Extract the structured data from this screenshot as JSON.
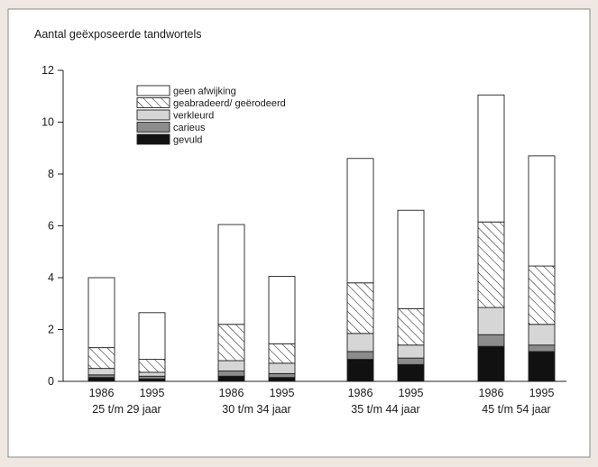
{
  "chart_data": {
    "type": "bar",
    "stacked": true,
    "ylabel": "Aantal geëxposeerde tandwortels",
    "ylim": [
      0,
      12
    ],
    "yticks": [
      "0",
      "2",
      "4",
      "6",
      "8",
      "10",
      "12"
    ],
    "grid": false,
    "legend_position": "top-left",
    "groups": [
      {
        "label": "25 t/m 29 jaar",
        "bars": [
          {
            "year": "1986",
            "values": [
              0.15,
              0.1,
              0.25,
              0.8,
              2.7
            ]
          },
          {
            "year": "1995",
            "values": [
              0.1,
              0.1,
              0.15,
              0.5,
              1.8
            ]
          }
        ]
      },
      {
        "label": "30 t/m 34 jaar",
        "bars": [
          {
            "year": "1986",
            "values": [
              0.2,
              0.2,
              0.4,
              1.4,
              3.85
            ]
          },
          {
            "year": "1995",
            "values": [
              0.15,
              0.15,
              0.4,
              0.75,
              2.6
            ]
          }
        ]
      },
      {
        "label": "35 t/m 44 jaar",
        "bars": [
          {
            "year": "1986",
            "values": [
              0.85,
              0.3,
              0.7,
              1.95,
              4.8
            ]
          },
          {
            "year": "1995",
            "values": [
              0.65,
              0.25,
              0.5,
              1.4,
              3.8
            ]
          }
        ]
      },
      {
        "label": "45 t/m 54 jaar",
        "bars": [
          {
            "year": "1986",
            "values": [
              1.35,
              0.45,
              1.05,
              3.3,
              4.9
            ]
          },
          {
            "year": "1995",
            "values": [
              1.15,
              0.25,
              0.8,
              2.25,
              4.25
            ]
          }
        ]
      }
    ],
    "series": [
      {
        "name": "gevuld",
        "color": "#111111",
        "pattern": "solid"
      },
      {
        "name": "carieus",
        "color": "#8c8c8c",
        "pattern": "solid"
      },
      {
        "name": "verkleurd",
        "color": "#d6d6d6",
        "pattern": "solid"
      },
      {
        "name": "geabradeerd/ geërodeerd",
        "color": "#ffffff",
        "pattern": "hatch"
      },
      {
        "name": "geen afwijking",
        "color": "#ffffff",
        "pattern": "solid"
      }
    ],
    "legend_order": [
      "geen afwijking",
      "geabradeerd/ geërodeerd",
      "verkleurd",
      "carieus",
      "gevuld"
    ]
  }
}
